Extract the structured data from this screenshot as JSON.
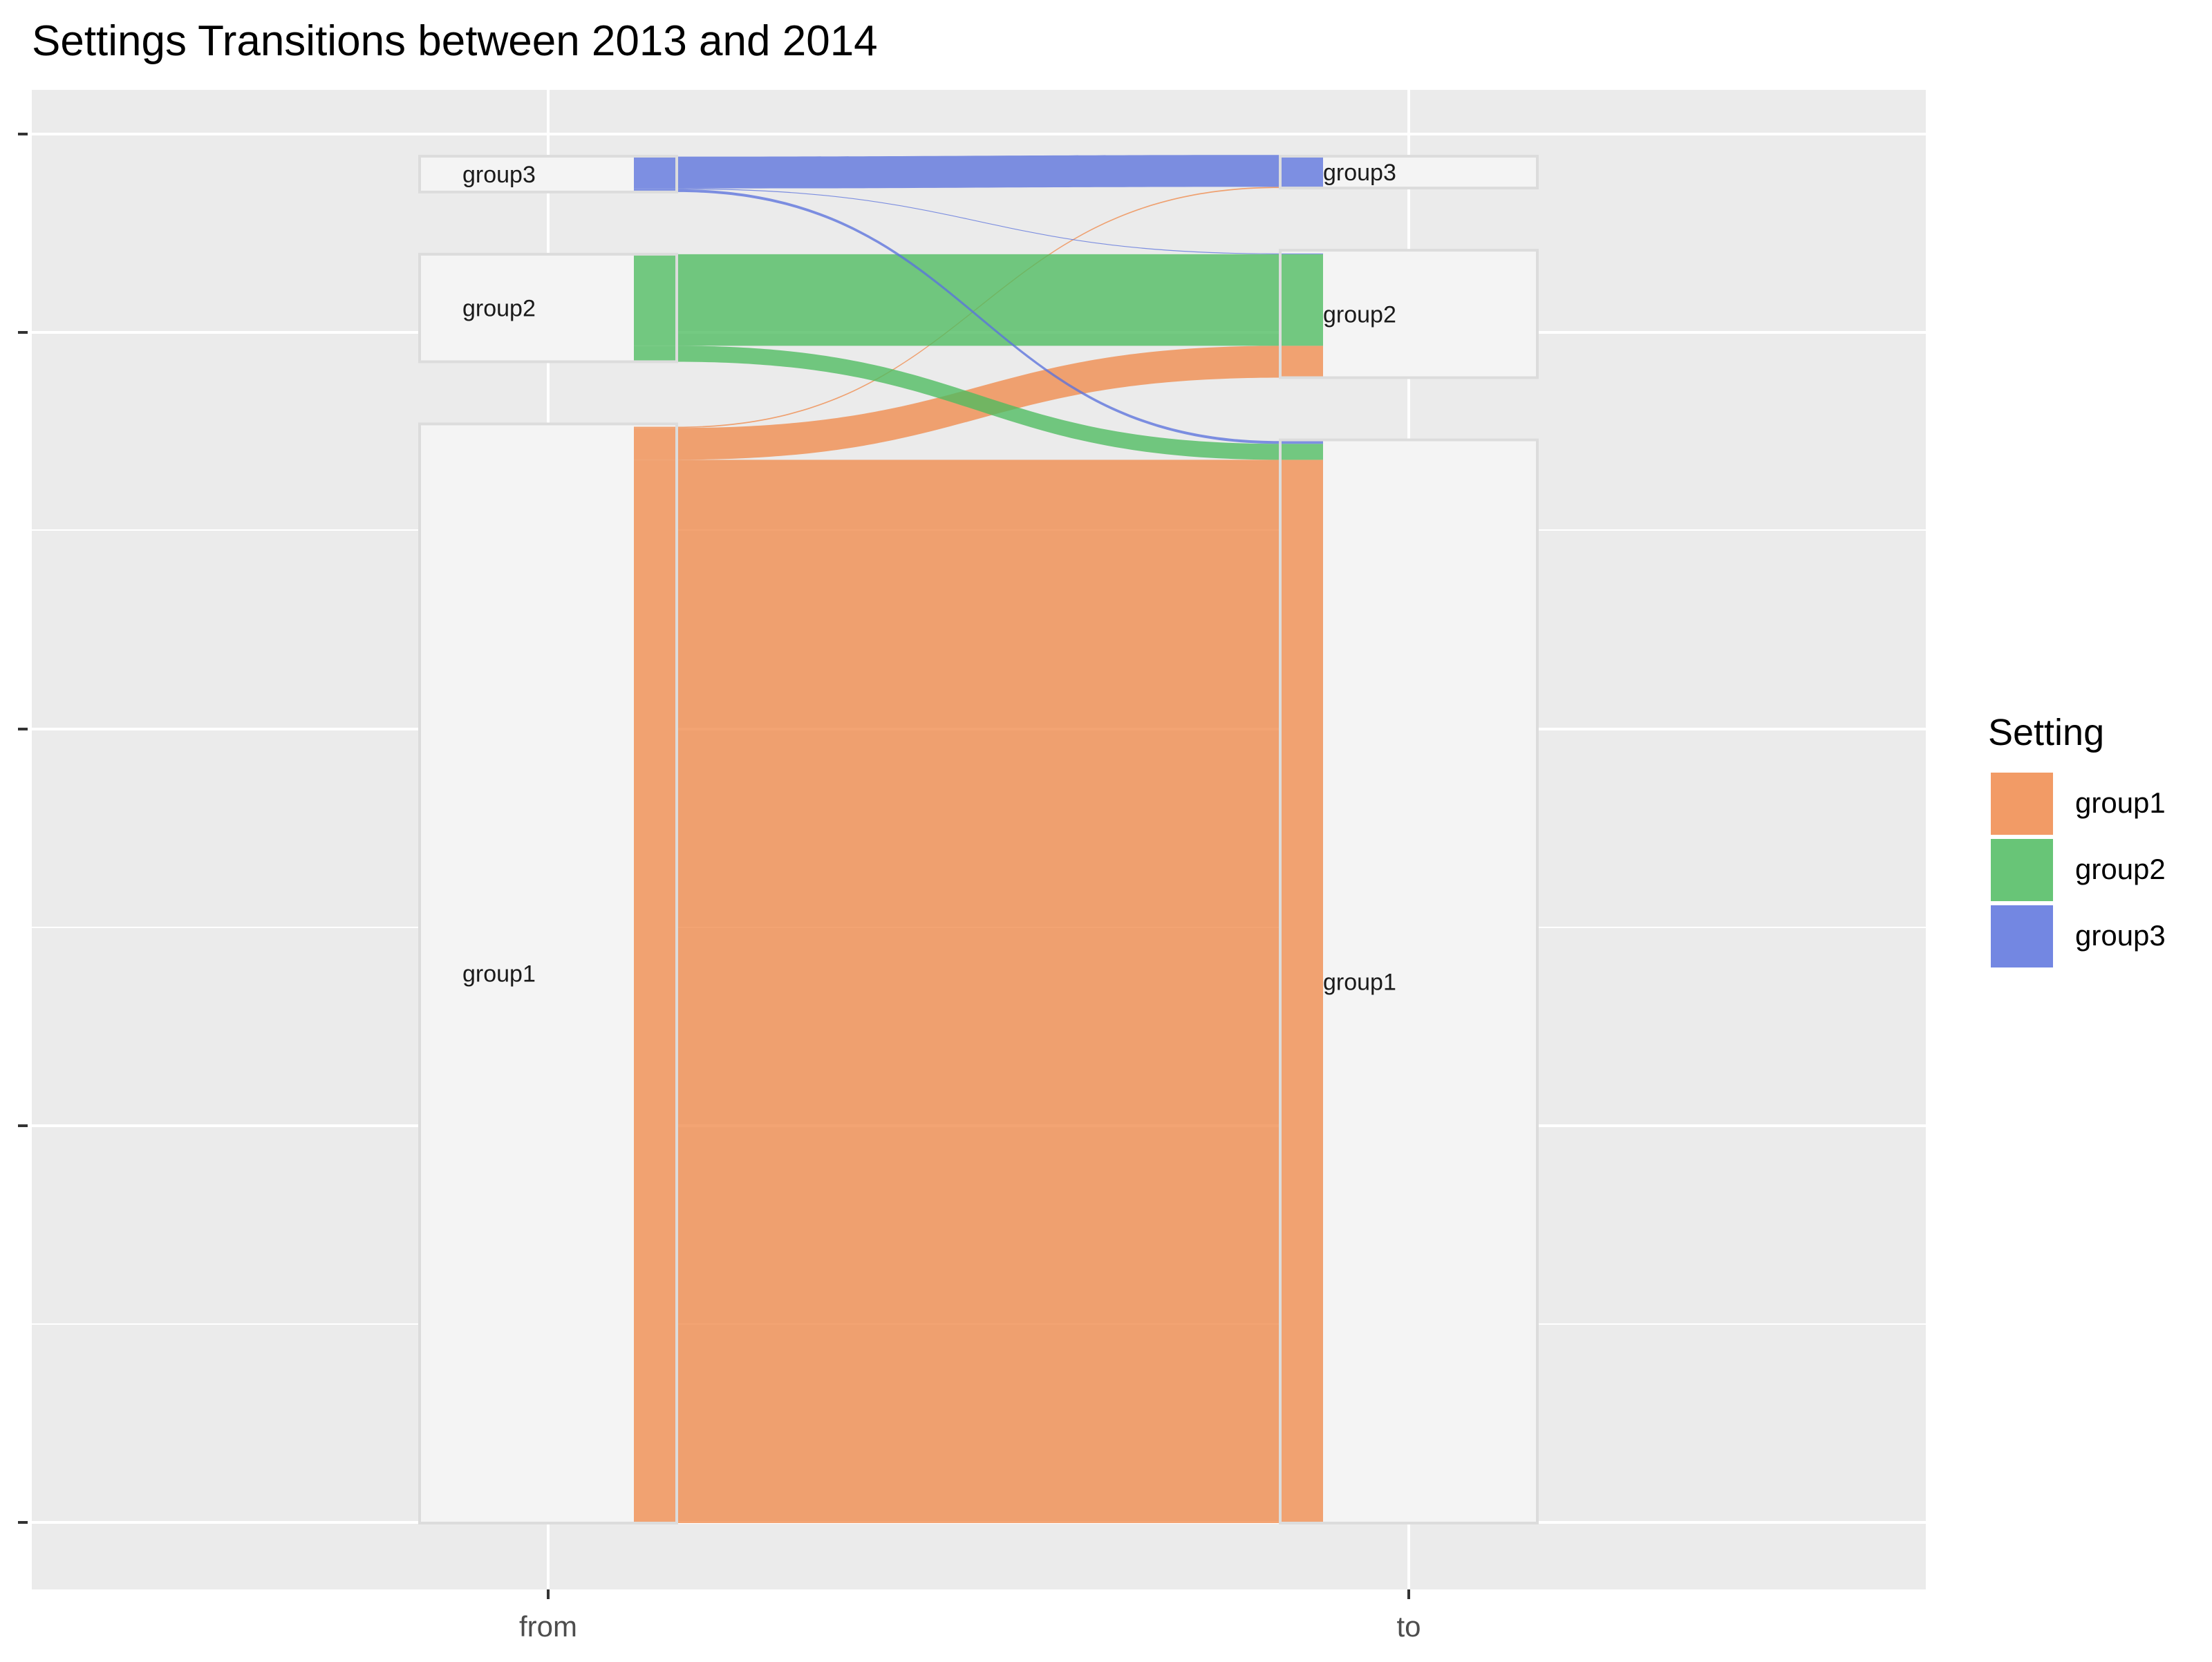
{
  "chart_data": {
    "type": "alluvial",
    "title": "Settings Transitions between 2013 and 2014",
    "axes": [
      "from",
      "to"
    ],
    "legend": {
      "title": "Setting",
      "placement": "right",
      "items": [
        "group1",
        "group2",
        "group3"
      ]
    },
    "colors": {
      "group1": "#F08A4B",
      "group2": "#4DBB5F",
      "group3": "#5B72DD",
      "panel": "#EBEBEB",
      "grid": "#FFFFFF",
      "stratum_fill": "#F4F4F4",
      "stratum_stroke": "#DCDCDC"
    },
    "strata_order_bottom_to_top": [
      "group1",
      "group2",
      "group3"
    ],
    "strata_from": [
      {
        "name": "group1",
        "value": 276
      },
      {
        "name": "group2",
        "value": 27
      },
      {
        "name": "group3",
        "value": 9
      }
    ],
    "strata_to": [
      {
        "name": "group1",
        "value": 272
      },
      {
        "name": "group2",
        "value": 32
      },
      {
        "name": "group3",
        "value": 8
      }
    ],
    "flows": [
      {
        "from": "group1",
        "to": "group1",
        "value": 267
      },
      {
        "from": "group1",
        "to": "group2",
        "value": 8
      },
      {
        "from": "group1",
        "to": "group3",
        "value": 0.3
      },
      {
        "from": "group2",
        "to": "group1",
        "value": 4
      },
      {
        "from": "group2",
        "to": "group2",
        "value": 23
      },
      {
        "from": "group3",
        "to": "group1",
        "value": 0.7
      },
      {
        "from": "group3",
        "to": "group2",
        "value": 0.2
      },
      {
        "from": "group3",
        "to": "group3",
        "value": 8
      }
    ],
    "grid": true
  }
}
